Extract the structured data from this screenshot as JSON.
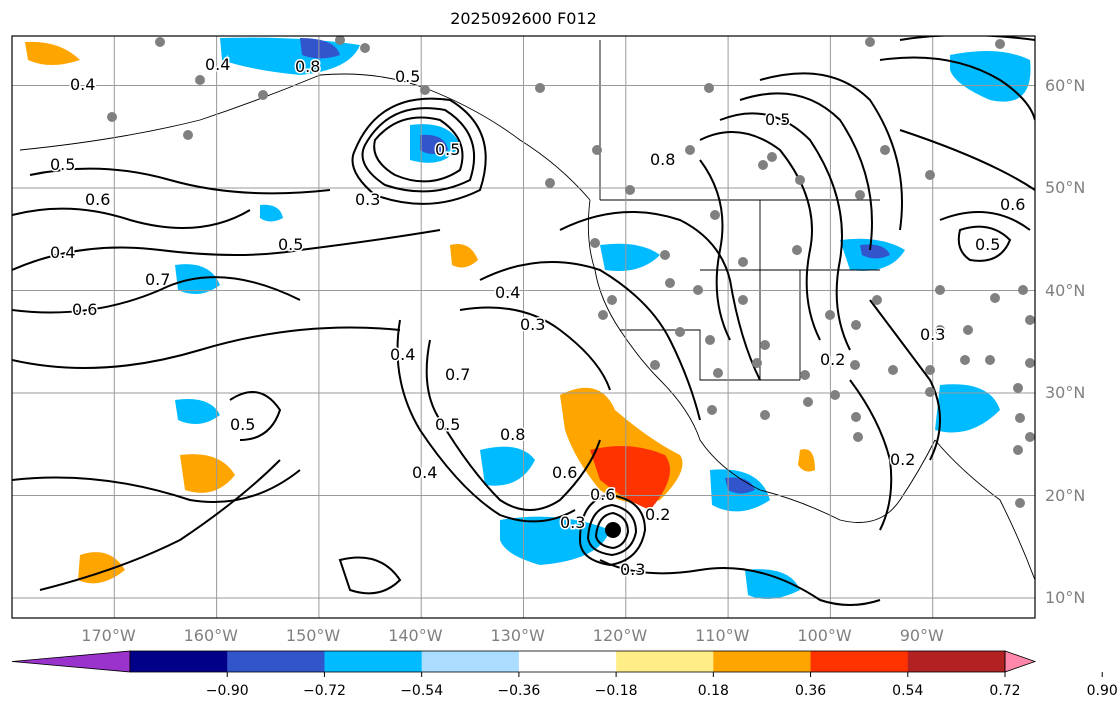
{
  "title": "2025092600 F012",
  "map": {
    "lon_range": [
      -180,
      -80
    ],
    "lat_range": [
      8,
      65
    ],
    "gridlines": true,
    "lon_ticks": [
      {
        "value": -170,
        "label": "170°W"
      },
      {
        "value": -160,
        "label": "160°W"
      },
      {
        "value": -150,
        "label": "150°W"
      },
      {
        "value": -140,
        "label": "140°W"
      },
      {
        "value": -130,
        "label": "130°W"
      },
      {
        "value": -120,
        "label": "120°W"
      },
      {
        "value": -110,
        "label": "110°W"
      },
      {
        "value": -100,
        "label": "100°W"
      },
      {
        "value": -90,
        "label": "90°W"
      }
    ],
    "lat_ticks": [
      {
        "value": 60,
        "label": "60°N"
      },
      {
        "value": 50,
        "label": "50°N"
      },
      {
        "value": 40,
        "label": "40°N"
      },
      {
        "value": 30,
        "label": "30°N"
      },
      {
        "value": 20,
        "label": "20°N"
      },
      {
        "value": 10,
        "label": "10°N"
      }
    ],
    "contour_labels": [
      "0.4",
      "0.8",
      "0.5",
      "0.4",
      "0.5",
      "0.3",
      "0.6",
      "0.5",
      "0.4",
      "0.7",
      "0.6",
      "0.5",
      "0.4",
      "0.3",
      "0.4",
      "0.7",
      "0.5",
      "0.8",
      "0.6",
      "0.4",
      "0.3",
      "0.5",
      "0.6",
      "0.8",
      "0.5",
      "0.5",
      "0.6",
      "0.3",
      "0.2",
      "0.2",
      "0.3",
      "0.2"
    ]
  },
  "colorbar": {
    "colors": [
      "#9933cc",
      "#000088",
      "#3355cc",
      "#00bbff",
      "#aaddff",
      "#ffffff",
      "#ffee88",
      "#ffa500",
      "#ff3300",
      "#b22222",
      "#ff88aa"
    ],
    "tick_labels": [
      "−0.90",
      "−0.72",
      "−0.54",
      "−0.36",
      "−0.18",
      "0.18",
      "0.36",
      "0.54",
      "0.72",
      "0.90"
    ]
  }
}
